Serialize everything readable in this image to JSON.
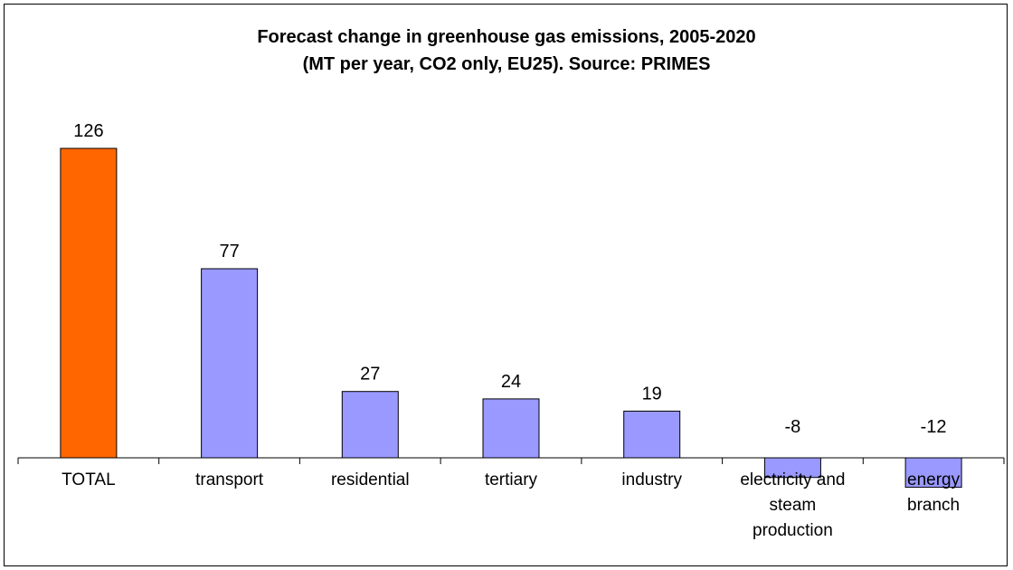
{
  "chart_data": {
    "type": "bar",
    "title": "Forecast change in greenhouse gas emissions, 2005-2020",
    "subtitle": "(MT per year, CO2 only, EU25). Source: PRIMES",
    "categories": [
      [
        "TOTAL"
      ],
      [
        "transport"
      ],
      [
        "residential"
      ],
      [
        "tertiary"
      ],
      [
        "industry"
      ],
      [
        "electricity and",
        "steam",
        "production"
      ],
      [
        "energy",
        "branch"
      ]
    ],
    "values": [
      126,
      77,
      27,
      24,
      19,
      -8,
      -12
    ],
    "data_labels": [
      "126",
      "77",
      "27",
      "24",
      "19",
      "-8",
      "-12"
    ],
    "bar_colors": [
      "#FF6600",
      "#9999FF",
      "#9999FF",
      "#9999FF",
      "#9999FF",
      "#9999FF",
      "#9999FF"
    ],
    "xlabel": "",
    "ylabel": "",
    "grid": false,
    "legend": "none"
  }
}
